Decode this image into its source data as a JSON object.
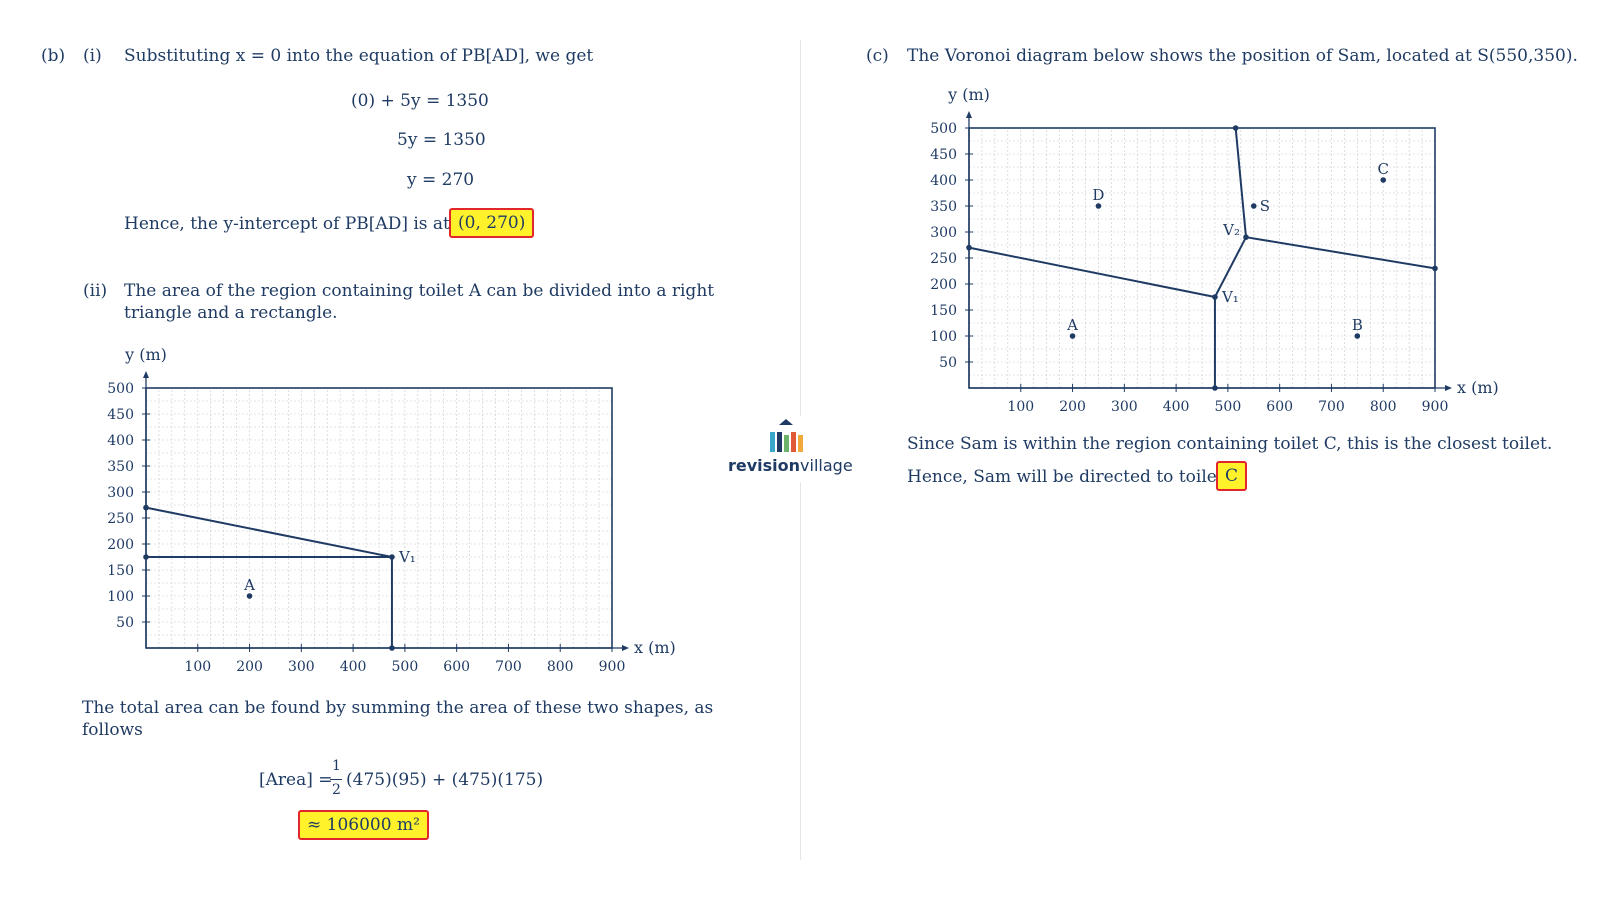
{
  "part_b": {
    "label": "(b)",
    "i": {
      "label": "(i)",
      "intro": "Substituting x = 0 into the equation of PB[AD], we get",
      "steps": [
        "(0) + 5y = 1350",
        "5y = 1350",
        "y = 270"
      ],
      "conclusion": "Hence, the y-intercept of PB[AD] is at",
      "answer": "(0, 270)"
    },
    "ii": {
      "label": "(ii)",
      "text_line1": "The area of the region containing toilet A can be divided into a right",
      "text_line2": "triangle and a rectangle.",
      "chart_ylabel": "y (m)",
      "chart_xlabel": "x (m)",
      "total_line1": "The total area can be found by summing the area of these two shapes, as",
      "total_line2": "follows",
      "area_lhs": "[Area] =",
      "area_frac_num": "1",
      "area_frac_den": "2",
      "area_rhs": "(475)(95) + (475)(175)",
      "answer": "≈ 106000 m²"
    }
  },
  "part_c": {
    "label": "(c)",
    "intro": "The Voronoi diagram below shows the position of Sam, located at S(550,350).",
    "chart_ylabel": "y (m)",
    "chart_xlabel": "x (m)",
    "line1": "Since Sam is within the region containing toilet C, this is the closest toilet.",
    "line2": "Hence, Sam will be directed to toilet",
    "answer": "C"
  },
  "logo": {
    "name_bold": "revision",
    "name_light": "village"
  },
  "chart_data": [
    {
      "type": "diagram",
      "x_ticks": [
        100,
        200,
        300,
        400,
        500,
        600,
        700,
        800,
        900
      ],
      "y_ticks": [
        50,
        100,
        150,
        200,
        250,
        300,
        350,
        400,
        450,
        500
      ],
      "xlim": [
        0,
        900
      ],
      "ylim": [
        0,
        500
      ],
      "grid": true,
      "points": [
        {
          "label": "A",
          "x": 200,
          "y": 100
        },
        {
          "label": "V₁",
          "x": 475,
          "y": 175
        }
      ],
      "segments": [
        {
          "from": [
            0,
            270
          ],
          "to": [
            475,
            175
          ]
        },
        {
          "from": [
            0,
            175
          ],
          "to": [
            475,
            175
          ]
        },
        {
          "from": [
            475,
            175
          ],
          "to": [
            475,
            0
          ]
        }
      ]
    },
    {
      "type": "diagram",
      "x_ticks": [
        100,
        200,
        300,
        400,
        500,
        600,
        700,
        800,
        900
      ],
      "y_ticks": [
        50,
        100,
        150,
        200,
        250,
        300,
        350,
        400,
        450,
        500
      ],
      "xlim": [
        0,
        900
      ],
      "ylim": [
        0,
        500
      ],
      "grid": true,
      "points": [
        {
          "label": "A",
          "x": 200,
          "y": 100
        },
        {
          "label": "B",
          "x": 750,
          "y": 100
        },
        {
          "label": "C",
          "x": 800,
          "y": 400
        },
        {
          "label": "D",
          "x": 250,
          "y": 350
        },
        {
          "label": "S",
          "x": 550,
          "y": 350
        },
        {
          "label": "V₁",
          "x": 475,
          "y": 175
        },
        {
          "label": "V₂",
          "x": 535,
          "y": 290
        }
      ],
      "segments": [
        {
          "from": [
            0,
            270
          ],
          "to": [
            475,
            175
          ]
        },
        {
          "from": [
            475,
            175
          ],
          "to": [
            475,
            0
          ]
        },
        {
          "from": [
            475,
            175
          ],
          "to": [
            535,
            290
          ]
        },
        {
          "from": [
            535,
            290
          ],
          "to": [
            515,
            500
          ]
        },
        {
          "from": [
            535,
            290
          ],
          "to": [
            900,
            230
          ]
        }
      ]
    }
  ]
}
